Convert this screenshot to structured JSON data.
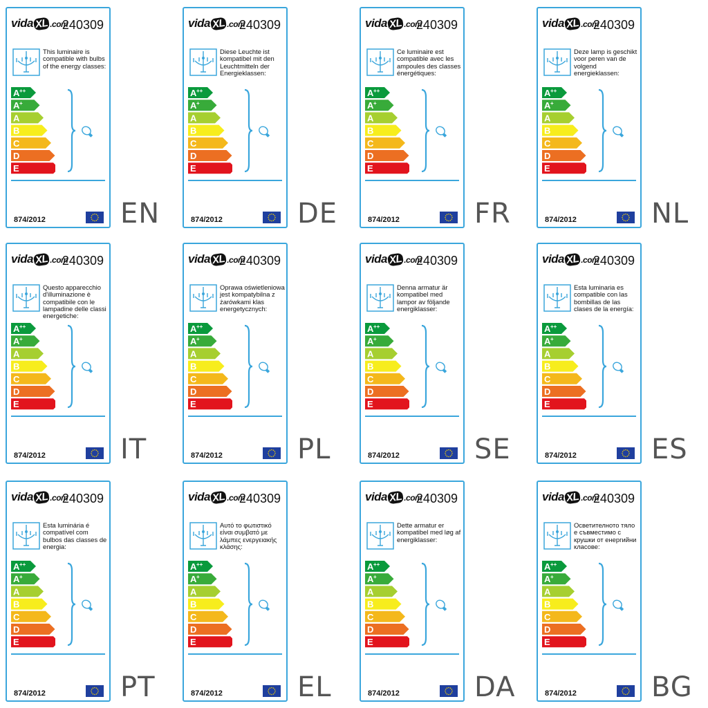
{
  "logo": {
    "pre": "vida",
    "xl": "XL",
    "post": ".com"
  },
  "model": "240309",
  "regulation": "874/2012",
  "classes": [
    "A",
    "A",
    "A",
    "B",
    "C",
    "D",
    "E"
  ],
  "class_sups": [
    "++",
    "+",
    "",
    "",
    "",
    "",
    ""
  ],
  "class_colors": [
    "#0a9a3c",
    "#38ab3a",
    "#a6cf30",
    "#f7ed1d",
    "#f4b81b",
    "#ec6f22",
    "#e2141d"
  ],
  "accent": "#3aa6dc",
  "labels": [
    {
      "lang": "EN",
      "text": "This luminaire is compatible with bulbs of the energy classes:"
    },
    {
      "lang": "DE",
      "text": "Diese Leuchte ist kompatibel mit den Leuchtmitteln der Energieklassen:"
    },
    {
      "lang": "FR",
      "text": "Ce luminaire est compatible avec les ampoules des classes énergétiques:"
    },
    {
      "lang": "NL",
      "text": "Deze lamp is geschikt voor peren van de volgend energieklassen:"
    },
    {
      "lang": "IT",
      "text": "Questo apparecchio d'illuminazione è compatibile con le lampadine delle classi energetiche:"
    },
    {
      "lang": "PL",
      "text": "Oprawa oświetleniowa jest kompatybilna z żarówkami klas energetycznych:"
    },
    {
      "lang": "SE",
      "text": "Denna armatur är kompatibel med lampor av följande energiklasser:"
    },
    {
      "lang": "ES",
      "text": "Esta luminaria es compatible con las bombillas de las clases de la energía:"
    },
    {
      "lang": "PT",
      "text": "Esta luminária é compatível com bulbos das classes de energia:"
    },
    {
      "lang": "EL",
      "text": "Αυτό το φωτιστικό είναι συμβατό με λάμπες ενεργειακής κλάσης:"
    },
    {
      "lang": "DA",
      "text": "Dette armatur er kompatibel med løg af energiklasser:"
    },
    {
      "lang": "BG",
      "text": "Осветителното тяло е съвместимо с крушки от енергийни класове:"
    }
  ]
}
